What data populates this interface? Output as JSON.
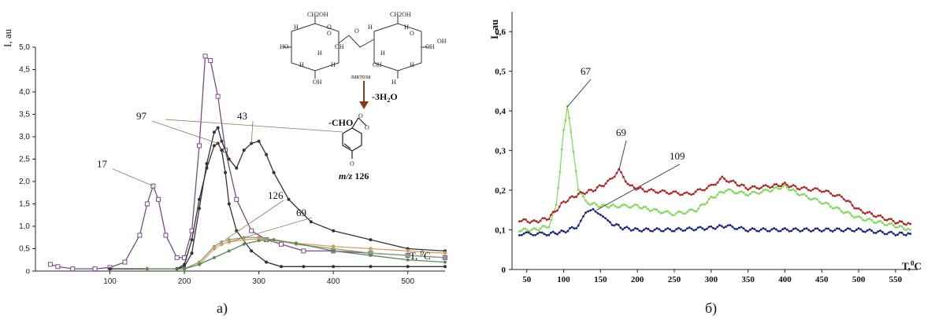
{
  "chart_data": [
    {
      "type": "line",
      "caption": "а)",
      "ylabel": "I, au",
      "xlabel_base": "T, ",
      "xlabel_sup": "0",
      "xlabel_unit": "C",
      "xlim": [
        0,
        550
      ],
      "ylim": [
        0,
        5.0
      ],
      "x_ticks": [
        100,
        200,
        300,
        400,
        500
      ],
      "x_tick_labels": [
        "100",
        "200",
        "300",
        "400",
        "500"
      ],
      "y_ticks": [
        0,
        0.5,
        1.0,
        1.5,
        2.0,
        2.5,
        3.0,
        3.5,
        4.0,
        4.5,
        5.0
      ],
      "y_tick_labels": [
        "o",
        "0,5",
        "1,0",
        "1,5",
        "2,0",
        "2,5",
        "3,0",
        "3,5",
        "4,0",
        "4,5",
        "5,0"
      ],
      "series": [
        {
          "label": "17",
          "color": "#7a4a8c",
          "marker": "square-open",
          "x": [
            20,
            30,
            50,
            80,
            100,
            120,
            140,
            150,
            158,
            165,
            175,
            190,
            200,
            210,
            220,
            228,
            235,
            245,
            255,
            270,
            290,
            310,
            330,
            360,
            400,
            450,
            500,
            550
          ],
          "y": [
            0.15,
            0.1,
            0.05,
            0.05,
            0.08,
            0.2,
            0.8,
            1.5,
            1.9,
            1.6,
            0.8,
            0.3,
            0.3,
            0.9,
            2.8,
            4.8,
            4.7,
            3.9,
            2.7,
            1.6,
            0.9,
            0.7,
            0.6,
            0.45,
            0.45,
            0.4,
            0.35,
            0.3
          ]
        },
        {
          "label": "97",
          "color": "#333333",
          "marker": "dot",
          "x": [
            100,
            150,
            190,
            200,
            210,
            220,
            230,
            240,
            245,
            250,
            255,
            260,
            270,
            290,
            310,
            330,
            360,
            400,
            450,
            500,
            550
          ],
          "y": [
            0.05,
            0.05,
            0.05,
            0.15,
            0.7,
            1.6,
            2.3,
            2.8,
            2.85,
            2.7,
            2.2,
            1.5,
            0.9,
            0.45,
            0.2,
            0.1,
            0.1,
            0.1,
            0.1,
            0.1,
            0.1
          ]
        },
        {
          "label": "43",
          "color": "#333333",
          "marker": "dot",
          "x": [
            100,
            150,
            190,
            200,
            210,
            220,
            230,
            240,
            245,
            250,
            260,
            270,
            280,
            290,
            300,
            310,
            320,
            340,
            370,
            400,
            450,
            500,
            550
          ],
          "y": [
            0.05,
            0.05,
            0.05,
            0.1,
            0.4,
            1.4,
            2.4,
            3.1,
            3.2,
            2.9,
            2.5,
            2.3,
            2.7,
            2.85,
            2.9,
            2.6,
            2.2,
            1.6,
            1.1,
            0.9,
            0.7,
            0.5,
            0.45
          ]
        },
        {
          "label": "126",
          "color": "#8aa07a",
          "marker": "dot",
          "x": [
            150,
            200,
            220,
            240,
            250,
            260,
            280,
            300,
            320,
            350,
            400,
            450,
            500,
            550
          ],
          "y": [
            0.05,
            0.05,
            0.2,
            0.55,
            0.65,
            0.7,
            0.75,
            0.75,
            0.7,
            0.6,
            0.5,
            0.4,
            0.35,
            0.3
          ]
        },
        {
          "label": "69",
          "color": "#d4a060",
          "marker": "diamond",
          "x": [
            150,
            200,
            220,
            240,
            250,
            260,
            280,
            300,
            320,
            350,
            400,
            450,
            500,
            550
          ],
          "y": [
            0.05,
            0.05,
            0.15,
            0.5,
            0.6,
            0.65,
            0.7,
            0.72,
            0.68,
            0.62,
            0.55,
            0.5,
            0.45,
            0.4
          ]
        },
        {
          "label": "",
          "color": "#5a8a5a",
          "marker": "dot",
          "x": [
            150,
            200,
            220,
            240,
            260,
            280,
            300,
            320,
            350,
            400,
            450,
            500,
            550
          ],
          "y": [
            0.05,
            0.05,
            0.15,
            0.3,
            0.45,
            0.6,
            0.68,
            0.7,
            0.62,
            0.45,
            0.35,
            0.25,
            0.2
          ]
        }
      ],
      "annotations": [
        {
          "text": "17",
          "x": 158,
          "y": 1.9
        },
        {
          "text": "97",
          "x": 245,
          "y": 2.85
        },
        {
          "text": "43",
          "x": 290,
          "y": 2.85
        },
        {
          "text": "126",
          "x": 255,
          "y": 0.7
        },
        {
          "text": "69",
          "x": 260,
          "y": 0.65
        }
      ],
      "inset": {
        "product_group": "-CHO",
        "reaction": "-3H",
        "reaction_sub": "2",
        "reaction_tail": "O",
        "mass_italic": "m/z",
        "mass_value": " 126",
        "sugar_name": "лактоза",
        "atom_labels": [
          "CH2OH",
          "CH2OH",
          "HO",
          "H",
          "O",
          "OH",
          "H",
          "H",
          "OH",
          "H",
          "O",
          "H",
          "H",
          "OH",
          "H",
          "OH",
          "H",
          "H",
          "OH",
          "O",
          "O"
        ]
      }
    },
    {
      "type": "line",
      "caption": "б)",
      "ylabel": "I, au",
      "xlabel_base": "T,",
      "xlabel_sup": "0",
      "xlabel_unit": "C",
      "xlim": [
        30,
        580
      ],
      "ylim": [
        0,
        0.65
      ],
      "x_ticks": [
        50,
        100,
        150,
        200,
        250,
        300,
        350,
        400,
        450,
        500,
        550
      ],
      "x_tick_labels": [
        "50",
        "100",
        "150",
        "200",
        "250",
        "300",
        "350",
        "400",
        "450",
        "500",
        "550"
      ],
      "y_ticks": [
        0,
        0.1,
        0.2,
        0.3,
        0.4,
        0.5,
        0.6
      ],
      "y_tick_labels": [
        "0",
        "0,1",
        "0,2",
        "0,3",
        "0,4",
        "0,5",
        "0,6"
      ],
      "series": [
        {
          "label": "67",
          "color": "#7ed957",
          "x": [
            40,
            60,
            80,
            90,
            95,
            100,
            105,
            110,
            120,
            130,
            150,
            170,
            200,
            220,
            250,
            280,
            300,
            320,
            350,
            380,
            400,
            420,
            450,
            500,
            550,
            570
          ],
          "y": [
            0.1,
            0.1,
            0.11,
            0.16,
            0.25,
            0.35,
            0.41,
            0.35,
            0.2,
            0.17,
            0.16,
            0.16,
            0.16,
            0.15,
            0.14,
            0.15,
            0.18,
            0.2,
            0.19,
            0.2,
            0.21,
            0.19,
            0.17,
            0.13,
            0.11,
            0.1
          ]
        },
        {
          "label": "69",
          "color": "#b22222",
          "x": [
            40,
            60,
            80,
            100,
            120,
            140,
            160,
            175,
            190,
            210,
            240,
            270,
            300,
            315,
            330,
            350,
            380,
            400,
            420,
            450,
            480,
            500,
            550,
            570
          ],
          "y": [
            0.125,
            0.12,
            0.13,
            0.17,
            0.19,
            0.2,
            0.22,
            0.25,
            0.21,
            0.2,
            0.195,
            0.19,
            0.21,
            0.23,
            0.22,
            0.205,
            0.21,
            0.215,
            0.205,
            0.2,
            0.18,
            0.15,
            0.12,
            0.115
          ]
        },
        {
          "label": "109",
          "color": "#1a237e",
          "x": [
            40,
            80,
            100,
            120,
            130,
            140,
            150,
            160,
            180,
            200,
            250,
            300,
            320,
            350,
            400,
            450,
            500,
            550,
            570
          ],
          "y": [
            0.09,
            0.09,
            0.095,
            0.11,
            0.14,
            0.155,
            0.14,
            0.12,
            0.105,
            0.1,
            0.1,
            0.105,
            0.11,
            0.1,
            0.1,
            0.1,
            0.1,
            0.09,
            0.09
          ]
        }
      ],
      "annotations": [
        {
          "text": "67",
          "x": 105,
          "y": 0.41
        },
        {
          "text": "69",
          "x": 175,
          "y": 0.25
        },
        {
          "text": "109",
          "x": 145,
          "y": 0.15
        }
      ]
    }
  ]
}
